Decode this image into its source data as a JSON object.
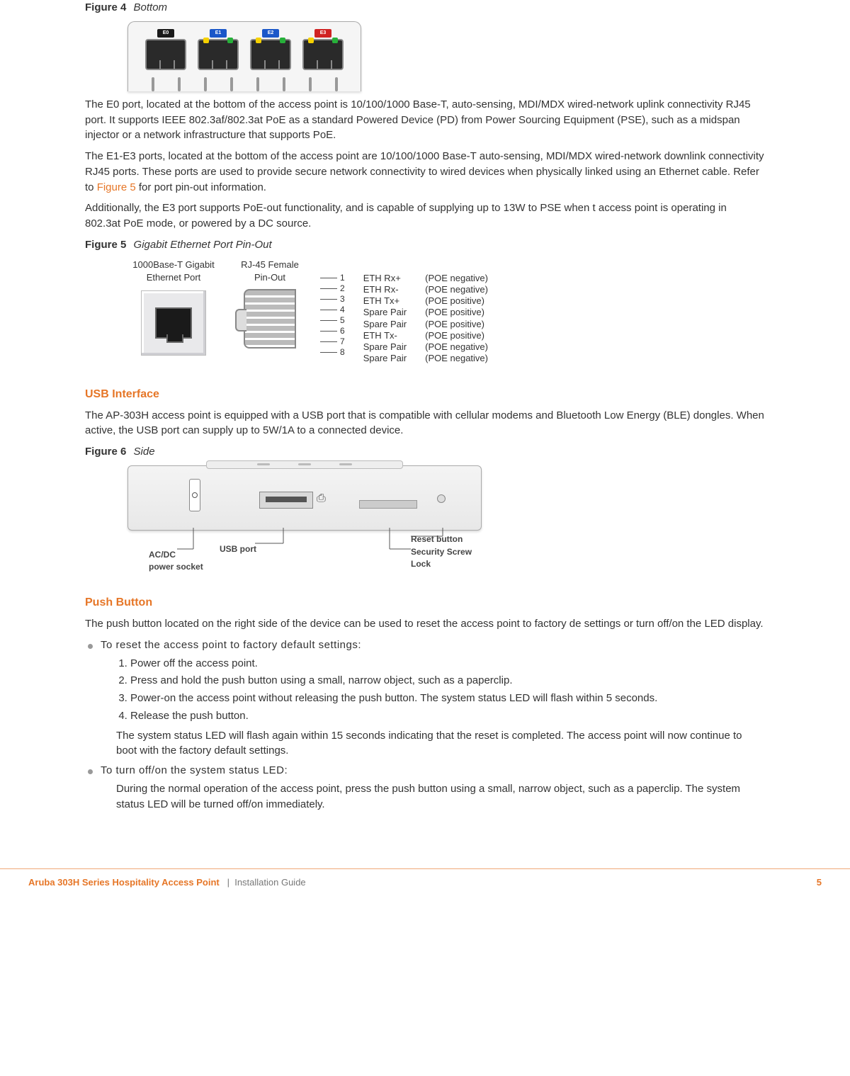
{
  "figure4": {
    "label": "Figure 4",
    "caption": "Bottom",
    "ports": [
      {
        "name": "E0",
        "tag_bg": "#1a1a1a",
        "led_left": "transparent",
        "led_right": "transparent"
      },
      {
        "name": "E1",
        "tag_bg": "#1a57c9",
        "led_left": "#f6d100",
        "led_right": "#27b03a"
      },
      {
        "name": "E2",
        "tag_bg": "#1a57c9",
        "led_left": "#f6d100",
        "led_right": "#27b03a"
      },
      {
        "name": "E3",
        "tag_bg": "#d02323",
        "led_left": "#f6d100",
        "led_right": "#27b03a"
      }
    ]
  },
  "para_e0": "The E0 port, located at the bottom of the access point is 10/100/1000 Base-T, auto-sensing, MDI/MDX wired-network uplink connectivity RJ45 port. It supports IEEE 802.3af/802.3at PoE as a standard Powered Device (PD) from Power Sourcing Equipment (PSE), such as a midspan injector or a network infrastructure that supports PoE.",
  "para_e1": "The E1-E3 ports, located at the bottom of the access point are 10/100/1000 Base-T auto-sensing, MDI/MDX wired-network downlink connectivity RJ45 ports. These ports are used to provide secure network connectivity to wired devices when physically linked using an Ethernet cable. Refer to ",
  "fig5_link": "Figure  5",
  "para_e1_tail": " for port pin-out information.",
  "para_add": "Additionally, the  E3  port  supports  PoE-out  functionality,  and  is  capable  of  supplying  up  to  13W  to  PSE  when  t access point is operating in 802.3at PoE mode,  or  powered  by  a  DC  source.",
  "figure5": {
    "label": "Figure 5",
    "caption": "Gigabit  Ethernet  Port  Pin-Out",
    "port_label_a": "1000Base-T Gigabit",
    "port_label_b": "Ethernet Port",
    "rj45_a": "RJ-45 Female",
    "rj45_b": "Pin-Out",
    "pins": [
      "1",
      "2",
      "3",
      "4",
      "5",
      "6",
      "7",
      "8"
    ],
    "signals": [
      "ETH Rx+",
      "ETH Rx-",
      "ETH Tx+",
      "Spare Pair",
      "Spare Pair",
      "ETH Tx-",
      "Spare Pair",
      "Spare Pair"
    ],
    "poe": [
      "(POE negative)",
      "(POE negative)",
      "(POE positive)",
      "(POE positive)",
      "(POE positive)",
      "(POE positive)",
      "(POE negative)",
      "(POE negative)"
    ]
  },
  "usb_h": "USB Interface",
  "usb_p": "The AP-303H access point is equipped with a  USB  port  that  is  compatible  with  cellular  modems  and  Bluetooth Low Energy (BLE) dongles. When active, the USB port can supply up to 5W/1A to  a  connected  device.",
  "figure6": {
    "label": "Figure 6",
    "caption": "Side",
    "c_acdc_a": "AC/DC",
    "c_acdc_b": "power socket",
    "c_usb": "USB port",
    "c_reset": "Reset button",
    "c_lock": "Security Screw Lock"
  },
  "push_h": "Push Button",
  "push_intro": "The push  button  located  on  the  right  side  of  the  device  can  be  used  to  reset  the  access  point  to  factory  de settings or turn off/on the LED display.",
  "bullet1": "To  reset  the  access  point  to  factory  default  settings:",
  "steps": [
    "Power off the access point.",
    "Press and hold the push button using a small, narrow object, such as a paperclip.",
    "Power-on the access point without releasing the push button. The system status LED will flash within 5 seconds.",
    "Release the push button."
  ],
  "steps_after": "The system status LED will flash again within 15 seconds indicating that the reset is completed. The access point will now continue to boot with the factory default settings.",
  "bullet2": "To  turn  off/on  the  system  status  LED:",
  "bullet2_body": "During the normal operation of the access point, press the push button using a small, narrow object, such as a paperclip. The system status LED will be turned off/on immediately.",
  "footer": {
    "product": "Aruba 303H Series Hospitality Access Point",
    "sep": "|",
    "doc": "Installation  Guide",
    "page": "5"
  }
}
